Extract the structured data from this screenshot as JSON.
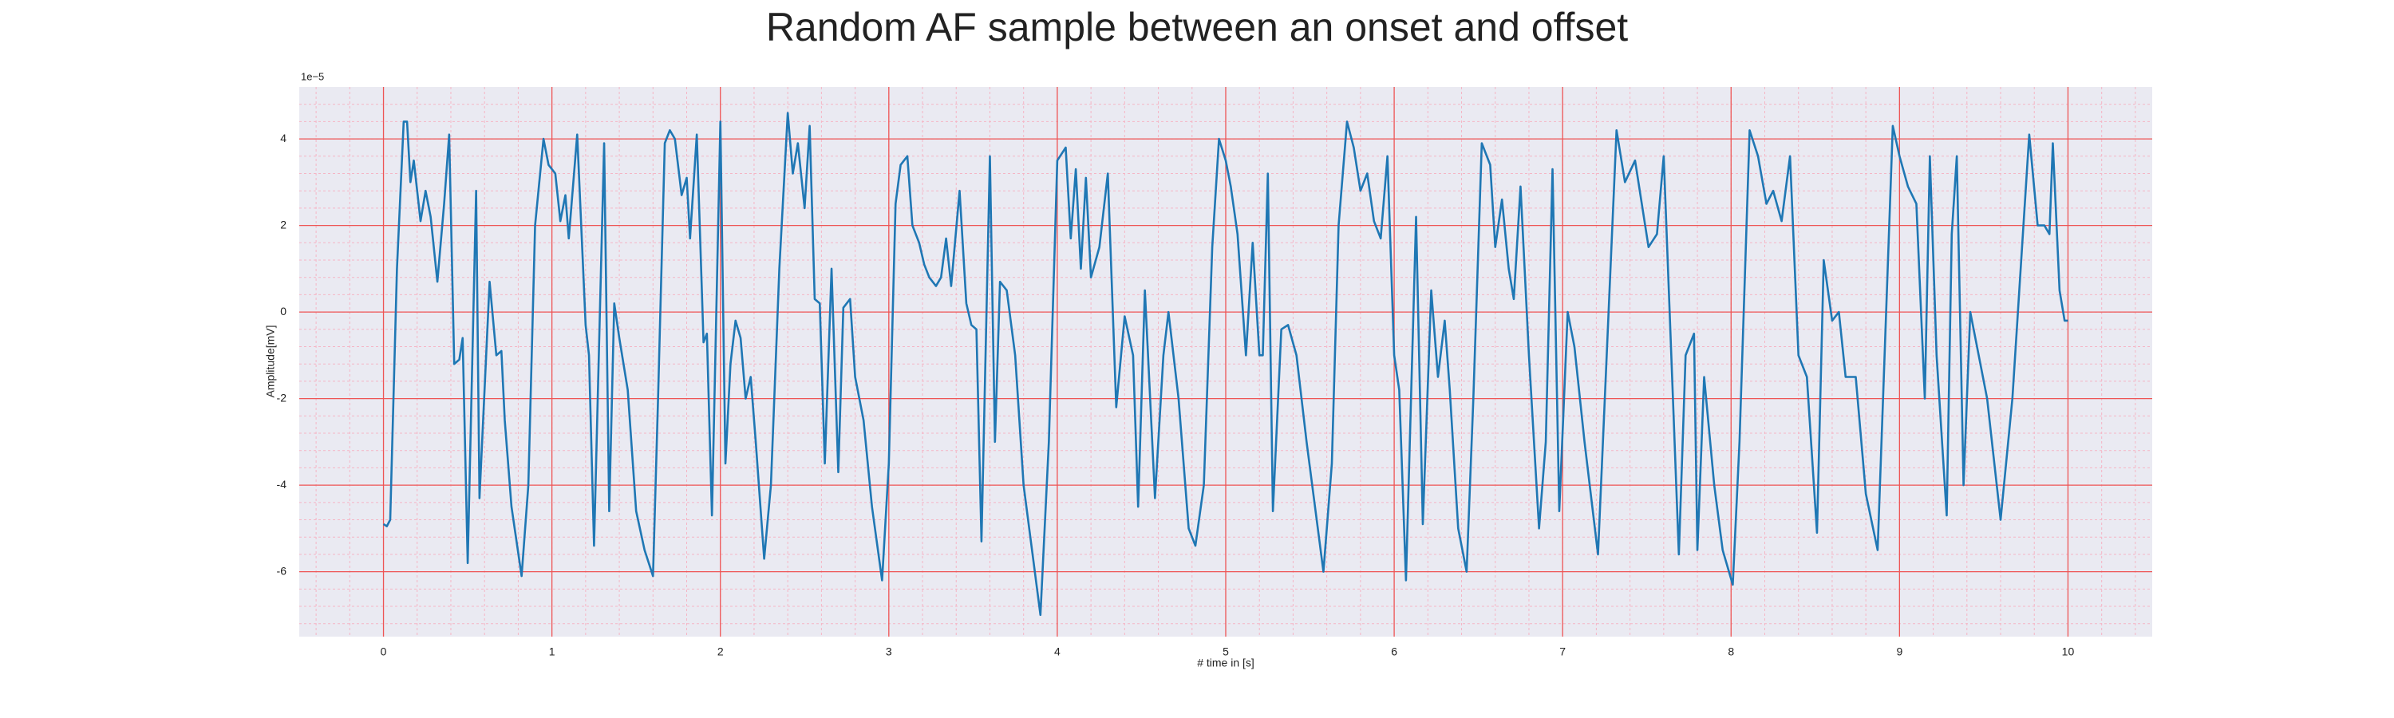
{
  "chart_data": {
    "type": "line",
    "title": "Random AF sample between an onset and offset",
    "x_label": "# time in [s]",
    "y_label": "Amplitude[mV]",
    "y_offset_text": "1e−5",
    "color": "#1f77b4",
    "grid": true,
    "minor_grid": true,
    "xlim": [
      -0.5,
      10.5
    ],
    "ylim": [
      -7.5,
      5.2
    ],
    "xticks": [
      0,
      1,
      2,
      3,
      4,
      5,
      6,
      7,
      8,
      9,
      10
    ],
    "yticks": [
      -6,
      -4,
      -2,
      0,
      2,
      4
    ],
    "x": [
      0,
      0.02,
      0.04,
      0.08,
      0.12,
      0.14,
      0.16,
      0.18,
      0.22,
      0.25,
      0.28,
      0.32,
      0.36,
      0.39,
      0.42,
      0.45,
      0.47,
      0.5,
      0.55,
      0.57,
      0.63,
      0.67,
      0.7,
      0.72,
      0.76,
      0.82,
      0.86,
      0.9,
      0.95,
      0.98,
      1.02,
      1.05,
      1.08,
      1.1,
      1.15,
      1.2,
      1.22,
      1.25,
      1.31,
      1.34,
      1.37,
      1.4,
      1.45,
      1.5,
      1.55,
      1.6,
      1.63,
      1.67,
      1.7,
      1.73,
      1.77,
      1.8,
      1.82,
      1.86,
      1.9,
      1.92,
      1.95,
      2.0,
      2.03,
      2.06,
      2.09,
      2.12,
      2.15,
      2.18,
      2.21,
      2.26,
      2.3,
      2.35,
      2.4,
      2.43,
      2.46,
      2.5,
      2.53,
      2.56,
      2.59,
      2.62,
      2.66,
      2.7,
      2.73,
      2.77,
      2.8,
      2.85,
      2.9,
      2.96,
      3.0,
      3.04,
      3.07,
      3.11,
      3.14,
      3.18,
      3.21,
      3.24,
      3.28,
      3.31,
      3.34,
      3.37,
      3.42,
      3.46,
      3.49,
      3.52,
      3.55,
      3.6,
      3.63,
      3.66,
      3.7,
      3.75,
      3.8,
      3.85,
      3.9,
      3.95,
      4.0,
      4.05,
      4.08,
      4.11,
      4.14,
      4.17,
      4.2,
      4.25,
      4.3,
      4.35,
      4.4,
      4.45,
      4.48,
      4.52,
      4.58,
      4.63,
      4.66,
      4.72,
      4.78,
      4.82,
      4.87,
      4.92,
      4.96,
      5.0,
      5.03,
      5.07,
      5.12,
      5.16,
      5.2,
      5.22,
      5.25,
      5.28,
      5.33,
      5.37,
      5.42,
      5.48,
      5.53,
      5.58,
      5.63,
      5.67,
      5.72,
      5.76,
      5.8,
      5.84,
      5.88,
      5.92,
      5.96,
      6.0,
      6.03,
      6.07,
      6.13,
      6.17,
      6.22,
      6.26,
      6.3,
      6.33,
      6.38,
      6.43,
      6.47,
      6.52,
      6.57,
      6.6,
      6.64,
      6.68,
      6.71,
      6.75,
      6.8,
      6.86,
      6.9,
      6.94,
      6.98,
      7.03,
      7.07,
      7.13,
      7.21,
      7.32,
      7.37,
      7.43,
      7.51,
      7.56,
      7.6,
      7.65,
      7.69,
      7.73,
      7.78,
      7.8,
      7.84,
      7.9,
      7.95,
      8.01,
      8.05,
      8.11,
      8.16,
      8.21,
      8.25,
      8.3,
      8.35,
      8.4,
      8.45,
      8.51,
      8.55,
      8.6,
      8.64,
      8.68,
      8.74,
      8.8,
      8.87,
      8.96,
      9.0,
      9.05,
      9.1,
      9.15,
      9.18,
      9.22,
      9.28,
      9.31,
      9.34,
      9.38,
      9.42,
      9.47,
      9.52,
      9.6,
      9.67,
      9.77,
      9.82,
      9.86,
      9.89,
      9.91,
      9.95,
      9.98,
      10.0
    ],
    "values": [
      -4.9,
      -4.95,
      -4.8,
      1.0,
      4.4,
      4.4,
      3.0,
      3.5,
      2.1,
      2.8,
      2.2,
      0.7,
      2.5,
      4.1,
      -1.2,
      -1.1,
      -0.6,
      -5.8,
      2.8,
      -4.3,
      0.7,
      -1.0,
      -0.9,
      -2.5,
      -4.5,
      -6.1,
      -4.0,
      2.0,
      4.0,
      3.4,
      3.2,
      2.1,
      2.7,
      1.7,
      4.1,
      -0.3,
      -1.0,
      -5.4,
      3.9,
      -4.6,
      0.2,
      -0.6,
      -1.8,
      -4.6,
      -5.5,
      -6.1,
      -2.0,
      3.9,
      4.2,
      4.0,
      2.7,
      3.1,
      1.7,
      4.1,
      -0.7,
      -0.5,
      -4.7,
      4.4,
      -3.5,
      -1.2,
      -0.2,
      -0.6,
      -2.0,
      -1.5,
      -3.0,
      -5.7,
      -4.0,
      1.0,
      4.6,
      3.2,
      3.9,
      2.4,
      4.3,
      0.3,
      0.2,
      -3.5,
      1.0,
      -3.7,
      0.1,
      0.3,
      -1.5,
      -2.5,
      -4.5,
      -6.2,
      -3.5,
      2.5,
      3.4,
      3.6,
      2.0,
      1.6,
      1.1,
      0.8,
      0.6,
      0.8,
      1.7,
      0.6,
      2.8,
      0.2,
      -0.3,
      -0.4,
      -5.3,
      3.6,
      -3.0,
      0.7,
      0.5,
      -1.0,
      -4.0,
      -5.5,
      -7.0,
      -3.0,
      3.5,
      3.8,
      1.7,
      3.3,
      1.0,
      3.1,
      0.8,
      1.5,
      3.2,
      -2.2,
      -0.1,
      -1.0,
      -4.5,
      0.5,
      -4.3,
      -1.0,
      0.0,
      -2.0,
      -5.0,
      -5.4,
      -4.0,
      1.5,
      4.0,
      3.5,
      2.9,
      1.8,
      -1.0,
      1.6,
      -1.0,
      -1.0,
      3.2,
      -4.6,
      -0.4,
      -0.3,
      -1.0,
      -3.0,
      -4.5,
      -6.0,
      -3.5,
      2.0,
      4.4,
      3.8,
      2.8,
      3.2,
      2.1,
      1.7,
      3.6,
      -1.0,
      -1.8,
      -6.2,
      2.2,
      -4.9,
      0.5,
      -1.5,
      -0.2,
      -1.8,
      -5.0,
      -6.0,
      -2.0,
      3.9,
      3.4,
      1.5,
      2.6,
      1.0,
      0.3,
      2.9,
      -1.0,
      -5.0,
      -3.0,
      3.3,
      -4.6,
      0.0,
      -0.8,
      -3.0,
      -5.6,
      4.2,
      3.0,
      3.5,
      1.5,
      1.8,
      3.6,
      -1.5,
      -5.6,
      -1.0,
      -0.5,
      -5.5,
      -1.5,
      -4.0,
      -5.5,
      -6.3,
      -3.0,
      4.2,
      3.6,
      2.5,
      2.8,
      2.1,
      3.6,
      -1.0,
      -1.5,
      -5.1,
      1.2,
      -0.2,
      0.0,
      -1.5,
      -1.5,
      -4.2,
      -5.5,
      4.3,
      3.6,
      2.9,
      2.5,
      -2.0,
      3.6,
      -1.0,
      -4.7,
      1.8,
      3.6,
      -4.0,
      0.0,
      -1.0,
      -2.0,
      -4.8,
      -2.0,
      4.1,
      2.0,
      2.0,
      1.8,
      3.9,
      0.5,
      -0.2,
      -0.2
    ]
  }
}
